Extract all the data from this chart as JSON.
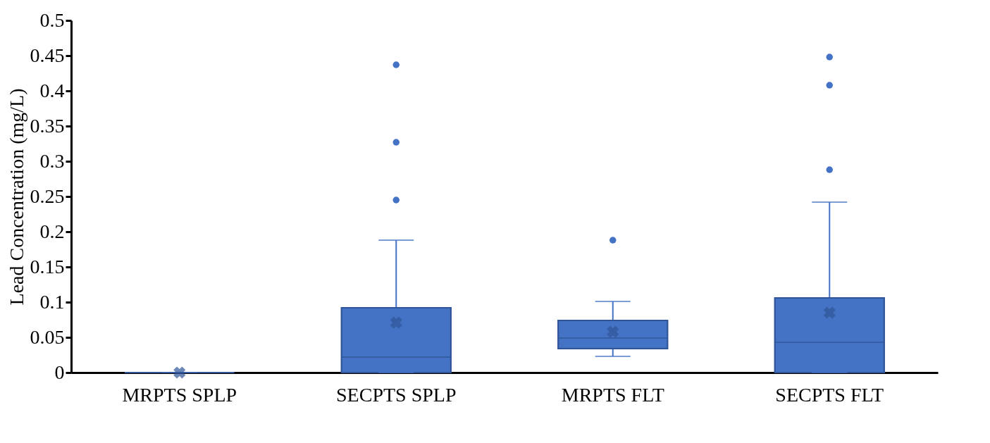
{
  "chart_data": {
    "type": "box",
    "ylabel": "Lead Concentration (mg/L)",
    "categories": [
      "MRPTS SPLP",
      "SECPTS SPLP",
      "MRPTS FLT",
      "SECPTS FLT"
    ],
    "color": "#4472c4",
    "ylim": [
      0,
      0.5
    ],
    "yticks": [
      0,
      0.05,
      0.1,
      0.15,
      0.2,
      0.25,
      0.3,
      0.35,
      0.4,
      0.45,
      0.5
    ],
    "grid": false,
    "boxes": [
      {
        "low": 0,
        "q1": 0,
        "median": 0,
        "q3": 0,
        "high": 0,
        "mean": 0
      },
      {
        "low": 0,
        "q1": 0,
        "median": 0.022,
        "q3": 0.092,
        "high": 0.188,
        "mean": 0.071,
        "outliers": [
          0.245,
          0.327,
          0.437
        ]
      },
      {
        "low": 0.023,
        "q1": 0.034,
        "median": 0.049,
        "q3": 0.074,
        "high": 0.101,
        "mean": 0.058,
        "outliers": [
          0.188
        ]
      },
      {
        "low": 0,
        "q1": 0,
        "median": 0.043,
        "q3": 0.106,
        "high": 0.242,
        "mean": 0.085,
        "outliers": [
          0.288,
          0.408,
          0.448
        ]
      }
    ]
  }
}
